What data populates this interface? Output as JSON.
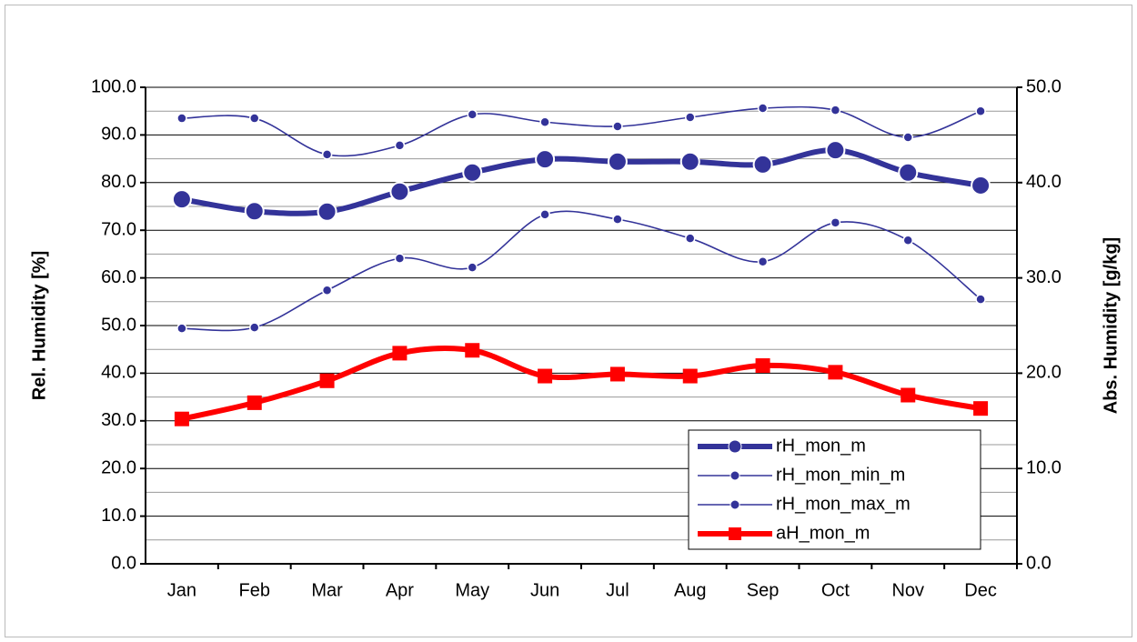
{
  "chart_data": {
    "type": "line",
    "y_label": "Rel. Humidity [%]",
    "y2_label": "Abs. Humidity [g/kg]",
    "categories": [
      "Jan",
      "Feb",
      "Mar",
      "Apr",
      "May",
      "Jun",
      "Jul",
      "Aug",
      "Sep",
      "Oct",
      "Nov",
      "Dec"
    ],
    "series": [
      {
        "name": "rH_mon_m",
        "color": "#333399",
        "marker": "circle",
        "values": [
          76.5,
          74.0,
          73.9,
          78.1,
          82.1,
          84.9,
          84.4,
          84.4,
          83.8,
          86.8,
          82.1,
          79.4
        ]
      },
      {
        "name": "rH_mon_min_m",
        "color": "#333399",
        "marker": "circle",
        "values": [
          49.4,
          49.6,
          57.4,
          64.1,
          62.2,
          73.3,
          72.3,
          68.3,
          63.4,
          71.6,
          67.9,
          55.5
        ]
      },
      {
        "name": "rH_mon_max_m",
        "color": "#333399",
        "marker": "circle",
        "values": [
          93.5,
          93.5,
          85.9,
          87.8,
          94.3,
          92.7,
          91.8,
          93.7,
          95.6,
          95.2,
          89.5,
          95.0
        ]
      },
      {
        "name": "aH_mon_m",
        "color": "#ff0000",
        "marker": "square",
        "axis": "y2",
        "values": [
          15.2,
          16.9,
          19.2,
          22.1,
          22.4,
          19.7,
          19.9,
          19.7,
          20.8,
          20.1,
          17.7,
          16.3
        ]
      }
    ],
    "ylim": [
      0,
      100
    ],
    "yticks": [
      {
        "value": 0,
        "label": "0.0"
      },
      {
        "value": 10,
        "label": "10.0"
      },
      {
        "value": 20,
        "label": "20.0"
      },
      {
        "value": 30,
        "label": "30.0"
      },
      {
        "value": 40,
        "label": "40.0"
      },
      {
        "value": 50,
        "label": "50.0"
      },
      {
        "value": 60,
        "label": "60.0"
      },
      {
        "value": 70,
        "label": "70.0"
      },
      {
        "value": 80,
        "label": "80.0"
      },
      {
        "value": 90,
        "label": "90.0"
      },
      {
        "value": 100,
        "label": "100.0"
      }
    ],
    "y2lim": [
      0,
      50
    ],
    "y2ticks": [
      {
        "value": 0,
        "label": "0.0"
      },
      {
        "value": 10,
        "label": "10.0"
      },
      {
        "value": 20,
        "label": "20.0"
      },
      {
        "value": 30,
        "label": "30.0"
      },
      {
        "value": 40,
        "label": "40.0"
      },
      {
        "value": 50,
        "label": "50.0"
      }
    ],
    "grid": true,
    "smooth": true,
    "legend": "bottom-right"
  }
}
